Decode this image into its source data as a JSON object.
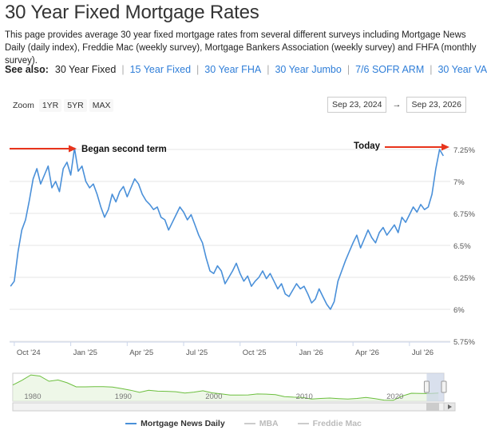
{
  "page": {
    "title": "30 Year Fixed Mortgage Rates",
    "intro": "This page provides average 30 year fixed mortgage rates from several different surveys including Mortgage News Daily (daily index), Freddie Mac (weekly survey), Mortgage Bankers Association (weekly survey) and FHFA (monthly survey)."
  },
  "see_also": {
    "label": "See also:",
    "current": "30 Year Fixed",
    "links": [
      "15 Year Fixed",
      "30 Year FHA",
      "30 Year Jumbo",
      "7/6 SOFR ARM",
      "30 Year VA"
    ],
    "link_color": "#2f7ed8"
  },
  "zoom": {
    "label": "Zoom",
    "buttons": [
      "1YR",
      "5YR",
      "MAX"
    ]
  },
  "range": {
    "from": "Sep 23, 2024",
    "arrow": "→",
    "to": "Sep 23, 2026"
  },
  "colors": {
    "series": "#4a90d9",
    "annotation_arrow": "#e8341c",
    "navigator_line": "#6cbf3e",
    "navigator_mask": "#c9d3e6",
    "grid": "#e6e6e6"
  },
  "chart_data": {
    "type": "line",
    "title": "",
    "xlabel": "",
    "ylabel": "",
    "ylim": [
      5.75,
      7.25
    ],
    "y_ticks": [
      "7.25%",
      "7%",
      "6.75%",
      "6.5%",
      "6.25%",
      "6%",
      "5.75%"
    ],
    "y_tick_values": [
      7.25,
      7.0,
      6.75,
      6.5,
      6.25,
      6.0,
      5.75
    ],
    "x_ticks": [
      "Oct '24",
      "Jan '25",
      "Apr '25",
      "Jul '25",
      "Oct '25",
      "Jan '26",
      "Apr '26",
      "Jul '26"
    ],
    "x_tick_months": [
      0,
      3,
      6,
      9,
      12,
      15,
      18,
      21
    ],
    "x_range_months": [
      -0.25,
      23.0
    ],
    "grid": true,
    "annotations": [
      {
        "text": "Began second term",
        "x": 3.2,
        "y": 7.27
      },
      {
        "text": "Today",
        "x": 22.6,
        "y": 7.27
      }
    ],
    "series": [
      {
        "name": "Mortgage News Daily",
        "x": [
          -0.2,
          0.0,
          0.2,
          0.4,
          0.6,
          0.8,
          1.0,
          1.2,
          1.4,
          1.6,
          1.8,
          2.0,
          2.2,
          2.4,
          2.6,
          2.8,
          3.0,
          3.2,
          3.4,
          3.6,
          3.8,
          4.0,
          4.2,
          4.4,
          4.6,
          4.8,
          5.0,
          5.2,
          5.4,
          5.6,
          5.8,
          6.0,
          6.2,
          6.4,
          6.6,
          6.8,
          7.0,
          7.2,
          7.4,
          7.6,
          7.8,
          8.0,
          8.2,
          8.4,
          8.6,
          8.8,
          9.0,
          9.2,
          9.4,
          9.6,
          9.8,
          10.0,
          10.2,
          10.4,
          10.6,
          10.8,
          11.0,
          11.2,
          11.4,
          11.6,
          11.8,
          12.0,
          12.2,
          12.4,
          12.6,
          12.8,
          13.0,
          13.2,
          13.4,
          13.6,
          13.8,
          14.0,
          14.2,
          14.4,
          14.6,
          14.8,
          15.0,
          15.2,
          15.4,
          15.6,
          15.8,
          16.0,
          16.2,
          16.4,
          16.6,
          16.8,
          17.0,
          17.2,
          17.4,
          17.6,
          17.8,
          18.0,
          18.2,
          18.4,
          18.6,
          18.8,
          19.0,
          19.2,
          19.4,
          19.6,
          19.8,
          20.0,
          20.2,
          20.4,
          20.6,
          20.8,
          21.0,
          21.2,
          21.4,
          21.6,
          21.8,
          22.0,
          22.2,
          22.4,
          22.6,
          22.8
        ],
        "values": [
          6.18,
          6.22,
          6.45,
          6.62,
          6.7,
          6.85,
          7.02,
          7.1,
          6.98,
          7.05,
          7.12,
          6.95,
          7.0,
          6.92,
          7.1,
          7.15,
          7.05,
          7.26,
          7.08,
          7.12,
          7.0,
          6.95,
          6.98,
          6.9,
          6.8,
          6.72,
          6.78,
          6.9,
          6.84,
          6.92,
          6.96,
          6.88,
          6.95,
          7.02,
          6.98,
          6.9,
          6.85,
          6.82,
          6.78,
          6.8,
          6.72,
          6.7,
          6.62,
          6.68,
          6.74,
          6.8,
          6.76,
          6.7,
          6.74,
          6.66,
          6.58,
          6.52,
          6.4,
          6.3,
          6.28,
          6.34,
          6.3,
          6.2,
          6.25,
          6.3,
          6.36,
          6.28,
          6.22,
          6.26,
          6.18,
          6.22,
          6.25,
          6.3,
          6.24,
          6.28,
          6.22,
          6.16,
          6.2,
          6.12,
          6.1,
          6.15,
          6.2,
          6.16,
          6.18,
          6.12,
          6.05,
          6.08,
          6.16,
          6.1,
          6.04,
          6.0,
          6.06,
          6.22,
          6.3,
          6.38,
          6.45,
          6.52,
          6.58,
          6.48,
          6.55,
          6.62,
          6.56,
          6.52,
          6.6,
          6.64,
          6.58,
          6.62,
          6.66,
          6.6,
          6.72,
          6.68,
          6.74,
          6.8,
          6.76,
          6.82,
          6.78,
          6.8,
          6.9,
          7.1,
          7.25,
          7.2
        ]
      },
      {
        "name": "MBA",
        "values": []
      },
      {
        "name": "Freddie Mac",
        "values": []
      }
    ]
  },
  "navigator": {
    "x_ticks": [
      "1980",
      "1990",
      "2000",
      "2010",
      "2020"
    ],
    "x_tick_years": [
      1980,
      1990,
      2000,
      2010,
      2020
    ],
    "year_range": [
      1979,
      2026.6
    ],
    "selection_years": [
      2024.7,
      2026.7
    ],
    "history": {
      "years": [
        1979,
        1980,
        1981,
        1982,
        1983,
        1984,
        1985,
        1986,
        1987,
        1988,
        1989,
        1990,
        1991,
        1992,
        1993,
        1994,
        1995,
        1996,
        1997,
        1998,
        1999,
        2000,
        2001,
        2002,
        2003,
        2004,
        2005,
        2006,
        2007,
        2008,
        2009,
        2010,
        2011,
        2012,
        2013,
        2014,
        2015,
        2016,
        2017,
        2018,
        2019,
        2020,
        2021,
        2022,
        2023,
        2024,
        2025,
        2026
      ],
      "values": [
        11.2,
        13.7,
        16.6,
        16.0,
        13.2,
        13.9,
        12.4,
        10.2,
        10.2,
        10.3,
        10.3,
        10.1,
        9.3,
        8.4,
        7.3,
        8.4,
        7.9,
        7.8,
        7.6,
        6.9,
        7.4,
        8.1,
        7.0,
        6.5,
        5.8,
        5.8,
        5.9,
        6.4,
        6.3,
        6.0,
        5.0,
        4.7,
        4.5,
        3.7,
        4.0,
        4.2,
        3.9,
        3.7,
        4.0,
        4.5,
        3.9,
        3.1,
        3.0,
        5.3,
        6.8,
        6.7,
        6.6,
        6.9
      ]
    }
  },
  "legend": {
    "items": [
      {
        "label": "Mortgage News Daily",
        "color": "#4a90d9",
        "active": true
      },
      {
        "label": "MBA",
        "color": "#cccccc",
        "active": false
      },
      {
        "label": "Freddie Mac",
        "color": "#cccccc",
        "active": false
      }
    ]
  }
}
